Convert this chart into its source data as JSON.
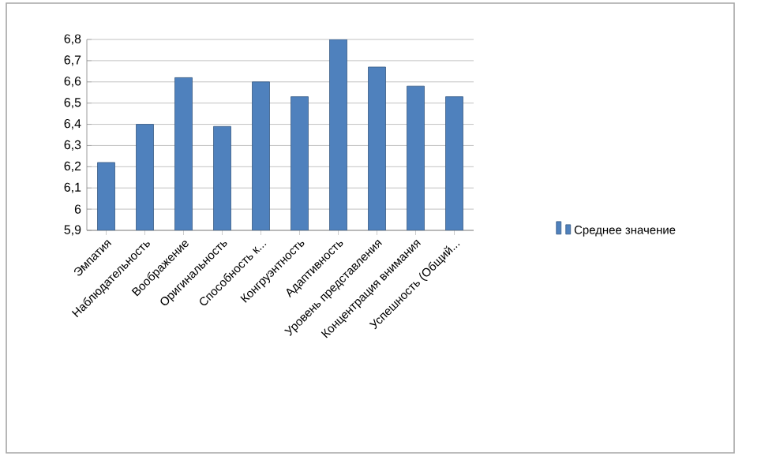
{
  "chart_data": {
    "type": "bar",
    "categories": [
      "Эмпатия",
      "Наблюдательность",
      "Воображение",
      "Оригинальность",
      "Способность к...",
      "Конгруэнтность",
      "Адаптивность",
      "Уровень представления",
      "Концентрация внимания",
      "Успешность (Общий..."
    ],
    "series": [
      {
        "name": "Среднее значение",
        "color": "#4f81bd",
        "values": [
          6.22,
          6.4,
          6.62,
          6.39,
          6.6,
          6.53,
          6.8,
          6.67,
          6.58,
          6.53
        ]
      }
    ],
    "ylim": [
      5.9,
      6.8
    ],
    "yticks": [
      {
        "value": 5.9,
        "label": "5,9"
      },
      {
        "value": 6,
        "label": "6"
      },
      {
        "value": 6.1,
        "label": "6,1"
      },
      {
        "value": 6.2,
        "label": "6,2"
      },
      {
        "value": 6.3,
        "label": "6,3"
      },
      {
        "value": 6.4,
        "label": "6,4"
      },
      {
        "value": 6.5,
        "label": "6,5"
      },
      {
        "value": 6.6,
        "label": "6,6"
      },
      {
        "value": 6.7,
        "label": "6,7"
      },
      {
        "value": 6.8,
        "label": "6,8"
      }
    ],
    "grid": "y",
    "legend": "right"
  }
}
